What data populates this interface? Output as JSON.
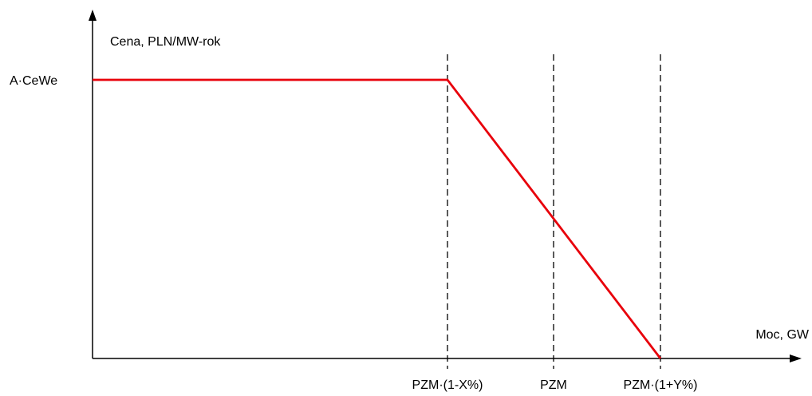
{
  "chart_data": {
    "type": "line",
    "title": "",
    "ylabel": "Cena, PLN/MW-rok",
    "xlabel": "Moc, GW",
    "y_tick": "A·CeWe",
    "x_ticks": [
      "PZM·(1-X%)",
      "PZM",
      "PZM·(1+Y%)"
    ],
    "series": [
      {
        "x": [
          "axis-start",
          "PZM·(1-X%)",
          "PZM",
          "PZM·(1+Y%)"
        ],
        "y": [
          "A·CeWe",
          "A·CeWe",
          "",
          "0"
        ]
      }
    ],
    "grid": false,
    "colors": {
      "curve": "#e8000b",
      "axis": "#000000",
      "guides": "#000000"
    }
  }
}
